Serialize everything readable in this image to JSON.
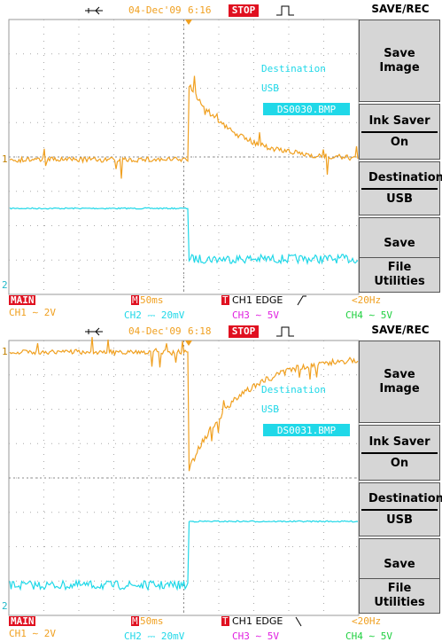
{
  "screens": [
    {
      "header": {
        "date": "04-Dec'09",
        "time": "6:16",
        "status": "STOP",
        "menu_title": "SAVE/REC"
      },
      "overlay": {
        "label": "Destination",
        "device": "USB",
        "file": "DS0030.BMP"
      },
      "menu": [
        {
          "label": "Save Image"
        },
        {
          "label": "Ink Saver",
          "value": "On"
        },
        {
          "label": "Destination",
          "value": "USB"
        },
        {
          "label": "Save"
        },
        {
          "label": "File Utilities"
        }
      ],
      "markers": [
        "1",
        "2"
      ],
      "footer": {
        "mode": "MAIN",
        "timebase_prefix": "M",
        "timebase": "50ms",
        "trigger_prefix": "T",
        "trigger": "CH1 EDGE",
        "frequency": "<20Hz",
        "channels": [
          "CH1 ∼ 2V",
          "CH2 ⎓ 20mV",
          "CH3 ∼ 5V",
          "CH4 ∼ 5V"
        ]
      }
    },
    {
      "header": {
        "date": "04-Dec'09",
        "time": "6:18",
        "status": "STOP",
        "menu_title": "SAVE/REC"
      },
      "overlay": {
        "label": "Destination",
        "device": "USB",
        "file": "DS0031.BMP"
      },
      "menu": [
        {
          "label": "Save Image"
        },
        {
          "label": "Ink Saver",
          "value": "On"
        },
        {
          "label": "Destination",
          "value": "USB"
        },
        {
          "label": "Save"
        },
        {
          "label": "File Utilities"
        }
      ],
      "markers": [
        "1",
        "2"
      ],
      "footer": {
        "mode": "MAIN",
        "timebase_prefix": "M",
        "timebase": "50ms",
        "trigger_prefix": "T",
        "trigger": "CH1 EDGE",
        "frequency": "<20Hz",
        "channels": [
          "CH1 ∼ 2V",
          "CH2 ⎓ 20mV",
          "CH3 ∼ 5V",
          "CH4 ∼ 5V"
        ]
      }
    }
  ]
}
